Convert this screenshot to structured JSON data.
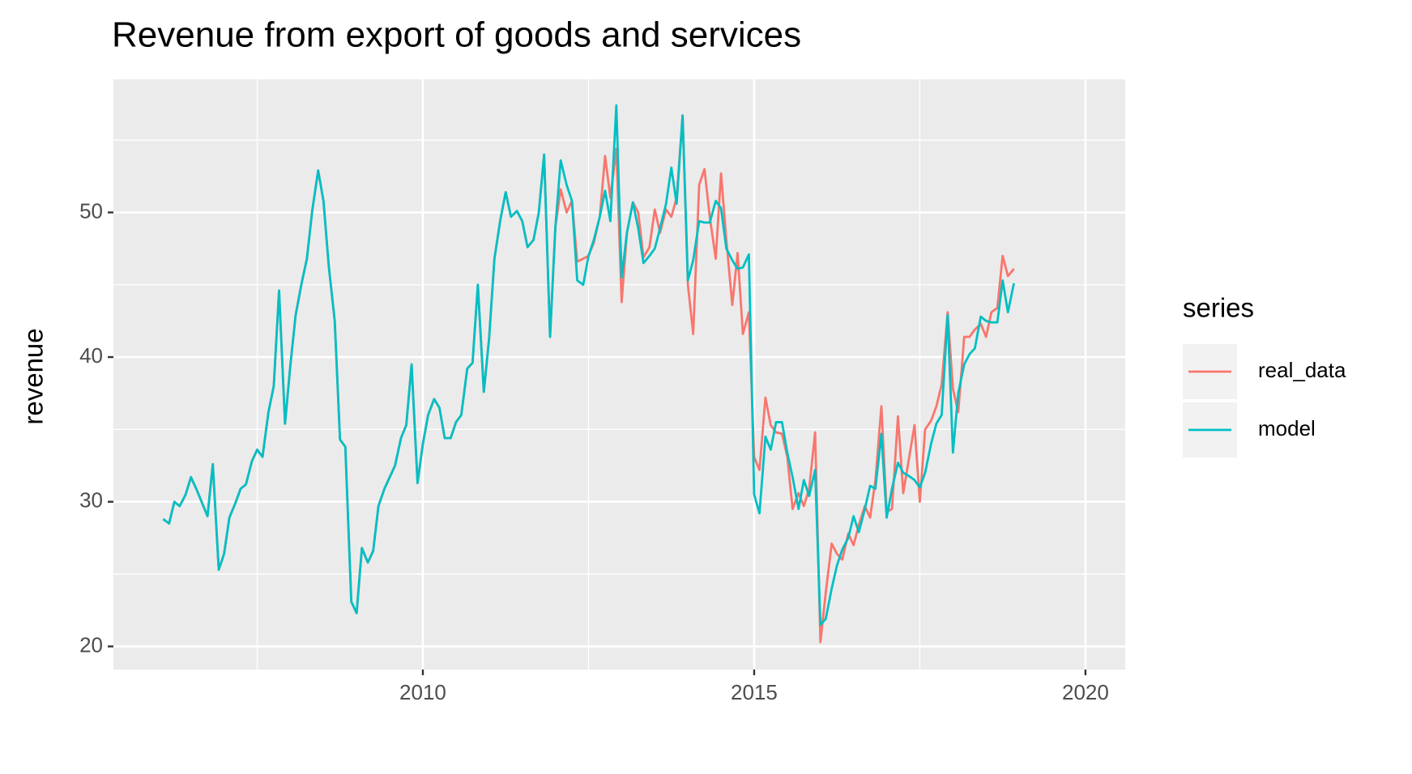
{
  "chart_data": {
    "type": "line",
    "title": "Revenue from export of goods and services",
    "y_label": "revenue",
    "legend_title": "series",
    "legend": "right",
    "grid": true,
    "x": [
      2006.08,
      2006.17,
      2006.25,
      2006.33,
      2006.42,
      2006.5,
      2006.58,
      2006.67,
      2006.75,
      2006.83,
      2006.92,
      2007,
      2007.08,
      2007.17,
      2007.25,
      2007.33,
      2007.42,
      2007.5,
      2007.58,
      2007.67,
      2007.75,
      2007.83,
      2007.92,
      2008,
      2008.08,
      2008.17,
      2008.25,
      2008.33,
      2008.42,
      2008.5,
      2008.58,
      2008.67,
      2008.75,
      2008.83,
      2008.92,
      2009,
      2009.08,
      2009.17,
      2009.25,
      2009.33,
      2009.42,
      2009.5,
      2009.58,
      2009.67,
      2009.75,
      2009.83,
      2009.92,
      2010,
      2010.08,
      2010.17,
      2010.25,
      2010.33,
      2010.42,
      2010.5,
      2010.58,
      2010.67,
      2010.75,
      2010.83,
      2010.92,
      2011,
      2011.08,
      2011.17,
      2011.25,
      2011.33,
      2011.42,
      2011.5,
      2011.58,
      2011.67,
      2011.75,
      2011.83,
      2011.92,
      2012,
      2012.08,
      2012.17,
      2012.25,
      2012.33,
      2012.42,
      2012.5,
      2012.58,
      2012.67,
      2012.75,
      2012.83,
      2012.92,
      2013,
      2013.08,
      2013.17,
      2013.25,
      2013.33,
      2013.42,
      2013.5,
      2013.58,
      2013.67,
      2013.75,
      2013.83,
      2013.92,
      2014,
      2014.08,
      2014.17,
      2014.25,
      2014.33,
      2014.42,
      2014.5,
      2014.58,
      2014.67,
      2014.75,
      2014.83,
      2014.92,
      2015,
      2015.08,
      2015.17,
      2015.25,
      2015.33,
      2015.42,
      2015.5,
      2015.58,
      2015.67,
      2015.75,
      2015.83,
      2015.92,
      2016,
      2016.08,
      2016.17,
      2016.25,
      2016.33,
      2016.42,
      2016.5,
      2016.58,
      2016.67,
      2016.75,
      2016.83,
      2016.92,
      2017,
      2017.08,
      2017.17,
      2017.25,
      2017.33,
      2017.42,
      2017.5,
      2017.58,
      2017.67,
      2017.75,
      2017.83,
      2017.92,
      2018,
      2018.08,
      2018.17,
      2018.25,
      2018.33,
      2018.42,
      2018.5,
      2018.58,
      2018.67,
      2018.75,
      2018.83,
      2018.92
    ],
    "series": [
      {
        "name": "real_data",
        "color": "#F8766D",
        "values": [
          28.8,
          28.5,
          30.0,
          29.7,
          30.5,
          31.7,
          30.9,
          29.9,
          29.0,
          32.6,
          25.3,
          26.4,
          28.9,
          29.9,
          30.9,
          31.2,
          32.8,
          33.6,
          33.1,
          36.2,
          38.0,
          44.6,
          35.4,
          39.4,
          42.9,
          45.1,
          46.8,
          50.1,
          52.9,
          50.8,
          46.3,
          42.5,
          34.3,
          33.8,
          23.1,
          22.3,
          26.8,
          25.8,
          26.6,
          29.7,
          30.9,
          31.7,
          32.5,
          34.4,
          35.3,
          39.5,
          31.3,
          34.0,
          36.0,
          37.1,
          36.5,
          34.4,
          34.4,
          35.5,
          36.0,
          39.2,
          39.6,
          45.0,
          37.6,
          41.3,
          46.8,
          49.5,
          51.4,
          49.7,
          50.1,
          49.4,
          47.6,
          48.1,
          50.0,
          54.0,
          41.4,
          49.0,
          51.6,
          50.0,
          50.8,
          46.6,
          46.8,
          47.0,
          47.9,
          49.7,
          53.9,
          51.0,
          54.4,
          43.8,
          48.6,
          50.7,
          50.0,
          46.9,
          47.6,
          50.2,
          48.6,
          50.2,
          49.7,
          51.0,
          56.7,
          45.0,
          41.6,
          51.9,
          53.0,
          49.7,
          46.8,
          52.7,
          48.1,
          43.6,
          47.2,
          41.6,
          43.1,
          33.1,
          32.2,
          37.2,
          35.3,
          34.8,
          34.7,
          33.1,
          29.5,
          30.6,
          29.7,
          30.9,
          34.8,
          20.3,
          23.7,
          27.1,
          26.4,
          26.0,
          27.8,
          27.0,
          28.4,
          29.7,
          28.9,
          31.5,
          36.6,
          29.3,
          29.5,
          35.9,
          30.6,
          32.8,
          35.3,
          30.0,
          35.0,
          35.6,
          36.6,
          38.1,
          43.1,
          37.8,
          36.2,
          41.4,
          41.4,
          41.9,
          42.3,
          41.4,
          43.1,
          43.4,
          47.0,
          45.6,
          46.1
        ]
      },
      {
        "name": "model",
        "color": "#00BFC4",
        "values": [
          28.8,
          28.5,
          30.0,
          29.7,
          30.5,
          31.7,
          30.9,
          29.9,
          29.0,
          32.6,
          25.3,
          26.4,
          28.9,
          29.9,
          30.9,
          31.2,
          32.8,
          33.6,
          33.1,
          36.2,
          38.0,
          44.6,
          35.4,
          39.4,
          42.9,
          45.1,
          46.8,
          50.1,
          52.9,
          50.8,
          46.3,
          42.5,
          34.3,
          33.8,
          23.1,
          22.3,
          26.8,
          25.8,
          26.6,
          29.7,
          30.9,
          31.7,
          32.5,
          34.4,
          35.3,
          39.5,
          31.3,
          34.0,
          36.0,
          37.1,
          36.5,
          34.4,
          34.4,
          35.5,
          36.0,
          39.2,
          39.6,
          45.0,
          37.6,
          41.3,
          46.8,
          49.5,
          51.4,
          49.7,
          50.1,
          49.4,
          47.6,
          48.1,
          50.0,
          54.0,
          41.4,
          49.0,
          53.6,
          51.9,
          50.8,
          45.3,
          45.0,
          47.0,
          48.1,
          49.7,
          51.5,
          49.4,
          57.4,
          45.5,
          48.6,
          50.7,
          48.9,
          46.5,
          47.0,
          47.5,
          48.9,
          50.6,
          53.1,
          50.6,
          56.7,
          45.3,
          46.7,
          49.4,
          49.3,
          49.3,
          50.8,
          50.3,
          47.5,
          46.7,
          46.1,
          46.2,
          47.1,
          30.5,
          29.2,
          34.5,
          33.6,
          35.5,
          35.5,
          33.4,
          31.7,
          29.5,
          31.5,
          30.4,
          32.2,
          21.5,
          21.9,
          24.0,
          25.6,
          26.7,
          27.5,
          29.0,
          27.9,
          29.5,
          31.1,
          30.9,
          34.7,
          28.9,
          30.9,
          32.7,
          32.0,
          31.8,
          31.5,
          31.0,
          32.0,
          34.0,
          35.4,
          36.0,
          42.9,
          33.4,
          37.5,
          39.5,
          40.2,
          40.6,
          42.8,
          42.5,
          42.4,
          42.4,
          45.3,
          43.1,
          45.1
        ]
      }
    ],
    "xlim": [
      2005.33,
      2020.6
    ],
    "xticks": [
      2010,
      2015,
      2020
    ],
    "ylim": [
      18.4,
      59.2
    ],
    "yticks": [
      20,
      30,
      40,
      50
    ]
  }
}
